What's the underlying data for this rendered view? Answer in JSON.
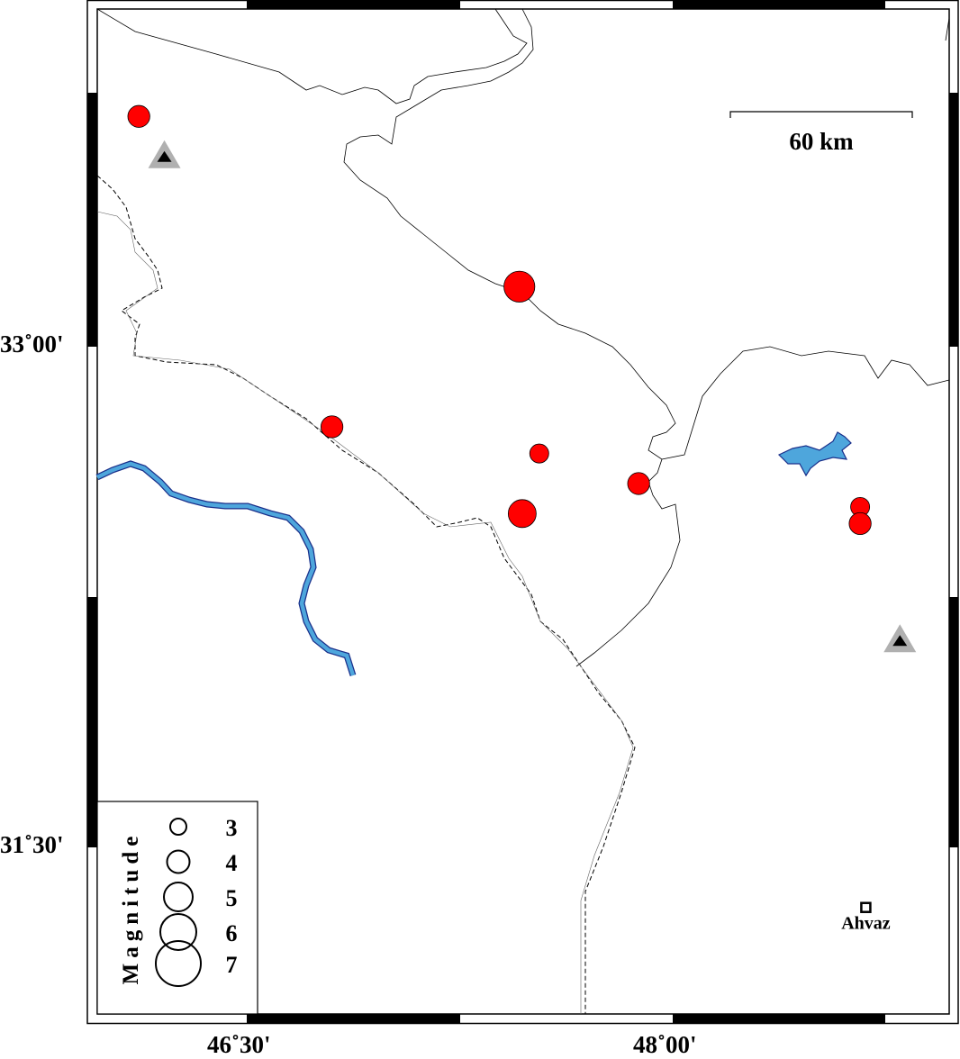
{
  "map": {
    "lon_ticks": [
      {
        "value": 46.5,
        "label": "46˚30'"
      },
      {
        "value": 48.0,
        "label": "48˚00'"
      }
    ],
    "lat_ticks": [
      {
        "value": 33.0,
        "label": "33˚00'"
      },
      {
        "value": 31.5,
        "label": "31˚30'"
      }
    ],
    "scale_bar": {
      "label": "60 km"
    },
    "river_color": "#4ea6dc",
    "event_color": "#ff0000",
    "events": [
      {
        "lon": 46.12,
        "lat": 33.69,
        "mag": 4
      },
      {
        "lon": 47.46,
        "lat": 33.18,
        "mag": 5.5
      },
      {
        "lon": 46.8,
        "lat": 32.76,
        "mag": 4
      },
      {
        "lon": 47.53,
        "lat": 32.68,
        "mag": 3.5
      },
      {
        "lon": 47.88,
        "lat": 32.59,
        "mag": 4
      },
      {
        "lon": 47.47,
        "lat": 32.5,
        "mag": 5
      },
      {
        "lon": 48.66,
        "lat": 32.52,
        "mag": 3.5
      },
      {
        "lon": 48.66,
        "lat": 32.47,
        "mag": 4
      }
    ],
    "stations": [
      {
        "lon": 46.21,
        "lat": 33.57
      },
      {
        "lon": 48.8,
        "lat": 32.12
      }
    ],
    "city": {
      "name": "Ahvaz",
      "lon": 48.68,
      "lat": 31.32
    }
  },
  "legend": {
    "title": "Magnitude",
    "mags": [
      "3",
      "4",
      "5",
      "6",
      "7"
    ]
  }
}
